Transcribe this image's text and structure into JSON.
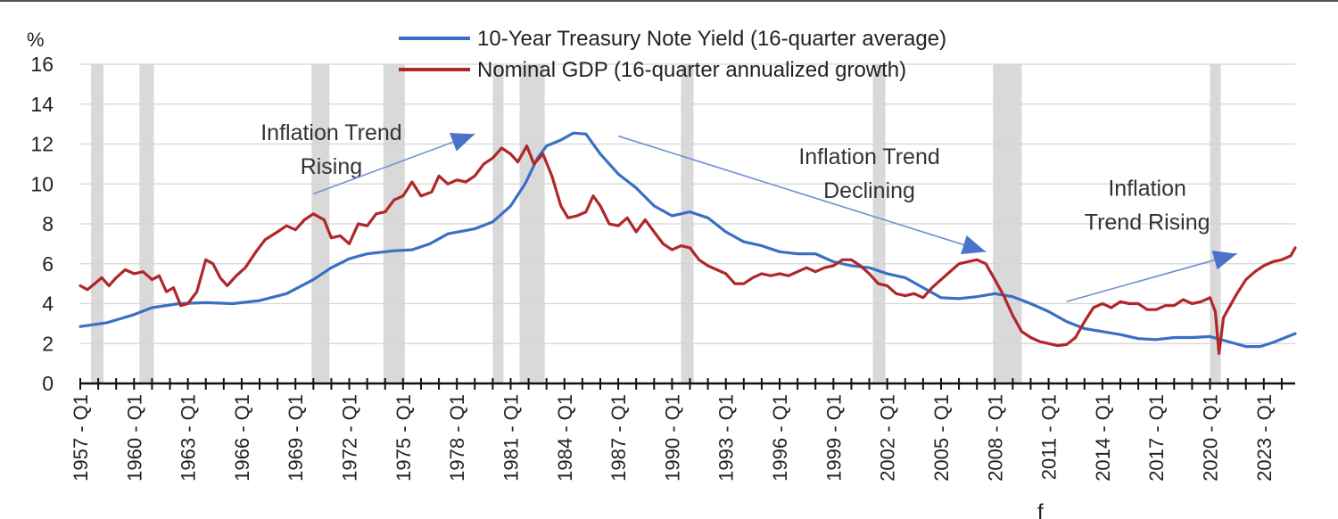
{
  "chart_data": {
    "type": "line",
    "unit_label": "%",
    "ylim": [
      0,
      16
    ],
    "y_ticks": [
      0,
      2,
      4,
      6,
      8,
      10,
      12,
      14,
      16
    ],
    "x_range": [
      1957.0,
      2024.75
    ],
    "x_tick_labels": [
      "1957 - Q1",
      "1960 - Q1",
      "1963 - Q1",
      "1966 - Q1",
      "1969 - Q1",
      "1972 - Q1",
      "1975 - Q1",
      "1978 - Q1",
      "1981 - Q1",
      "1984 - Q1",
      "1987 - Q1",
      "1990 - Q1",
      "1993 - Q1",
      "1996 - Q1",
      "1999 - Q1",
      "2002 - Q1",
      "2005 - Q1",
      "2008 - Q1",
      "2011 - Q1",
      "2014 - Q1",
      "2017 - Q1",
      "2020 - Q1",
      "2023 - Q1"
    ],
    "x_tick_years": [
      1957,
      1960,
      1963,
      1966,
      1969,
      1972,
      1975,
      1978,
      1981,
      1984,
      1987,
      1990,
      1993,
      1996,
      1999,
      2002,
      2005,
      2008,
      2011,
      2014,
      2017,
      2020,
      2023
    ],
    "grid": "horizontal",
    "legend_position": "top-center",
    "recessions": [
      [
        1957.6,
        1958.3
      ],
      [
        1960.3,
        1961.1
      ],
      [
        1969.9,
        1970.9
      ],
      [
        1973.9,
        1975.1
      ],
      [
        1980.0,
        1980.6
      ],
      [
        1981.5,
        1982.9
      ],
      [
        1990.5,
        1991.2
      ],
      [
        2001.2,
        2001.9
      ],
      [
        2007.9,
        2009.5
      ],
      [
        2020.0,
        2020.6
      ]
    ],
    "series": [
      {
        "name": "10-Year Treasury Note Yield (16-quarter average)",
        "color": "#3a6fc4",
        "points": [
          [
            1957.0,
            2.85
          ],
          [
            1958.5,
            3.05
          ],
          [
            1960.0,
            3.45
          ],
          [
            1961.0,
            3.8
          ],
          [
            1962.5,
            4.0
          ],
          [
            1964.0,
            4.05
          ],
          [
            1965.5,
            4.0
          ],
          [
            1967.0,
            4.15
          ],
          [
            1968.5,
            4.5
          ],
          [
            1970.0,
            5.2
          ],
          [
            1971.0,
            5.8
          ],
          [
            1972.0,
            6.25
          ],
          [
            1973.0,
            6.5
          ],
          [
            1974.5,
            6.65
          ],
          [
            1975.5,
            6.7
          ],
          [
            1976.5,
            7.0
          ],
          [
            1977.5,
            7.5
          ],
          [
            1979.0,
            7.75
          ],
          [
            1980.0,
            8.1
          ],
          [
            1981.0,
            8.9
          ],
          [
            1981.8,
            10.0
          ],
          [
            1982.5,
            11.3
          ],
          [
            1983.0,
            11.9
          ],
          [
            1983.8,
            12.2
          ],
          [
            1984.5,
            12.55
          ],
          [
            1985.2,
            12.5
          ],
          [
            1986.0,
            11.5
          ],
          [
            1987.0,
            10.5
          ],
          [
            1988.0,
            9.8
          ],
          [
            1989.0,
            8.9
          ],
          [
            1990.0,
            8.4
          ],
          [
            1991.0,
            8.6
          ],
          [
            1992.0,
            8.3
          ],
          [
            1993.0,
            7.6
          ],
          [
            1994.0,
            7.1
          ],
          [
            1995.0,
            6.9
          ],
          [
            1996.0,
            6.6
          ],
          [
            1997.0,
            6.5
          ],
          [
            1998.0,
            6.5
          ],
          [
            1999.0,
            6.1
          ],
          [
            2000.0,
            5.9
          ],
          [
            2001.0,
            5.8
          ],
          [
            2002.0,
            5.5
          ],
          [
            2003.0,
            5.3
          ],
          [
            2004.0,
            4.8
          ],
          [
            2005.0,
            4.3
          ],
          [
            2006.0,
            4.25
          ],
          [
            2007.0,
            4.35
          ],
          [
            2008.0,
            4.5
          ],
          [
            2009.0,
            4.35
          ],
          [
            2010.0,
            4.0
          ],
          [
            2011.0,
            3.6
          ],
          [
            2012.0,
            3.1
          ],
          [
            2013.0,
            2.75
          ],
          [
            2014.0,
            2.6
          ],
          [
            2015.0,
            2.45
          ],
          [
            2016.0,
            2.25
          ],
          [
            2017.0,
            2.2
          ],
          [
            2018.0,
            2.3
          ],
          [
            2019.0,
            2.3
          ],
          [
            2020.0,
            2.35
          ],
          [
            2021.0,
            2.1
          ],
          [
            2022.0,
            1.85
          ],
          [
            2022.8,
            1.85
          ],
          [
            2023.5,
            2.05
          ],
          [
            2024.75,
            2.5
          ]
        ]
      },
      {
        "name": "Nominal GDP (16-quarter annualized growth)",
        "color": "#b0262a",
        "points": [
          [
            1957.0,
            4.9
          ],
          [
            1957.4,
            4.7
          ],
          [
            1957.8,
            5.0
          ],
          [
            1958.2,
            5.3
          ],
          [
            1958.6,
            4.9
          ],
          [
            1959.0,
            5.3
          ],
          [
            1959.5,
            5.7
          ],
          [
            1960.0,
            5.5
          ],
          [
            1960.5,
            5.6
          ],
          [
            1961.0,
            5.2
          ],
          [
            1961.4,
            5.4
          ],
          [
            1961.8,
            4.6
          ],
          [
            1962.2,
            4.8
          ],
          [
            1962.6,
            3.9
          ],
          [
            1963.0,
            4.0
          ],
          [
            1963.5,
            4.6
          ],
          [
            1964.0,
            6.2
          ],
          [
            1964.4,
            6.0
          ],
          [
            1964.8,
            5.3
          ],
          [
            1965.2,
            4.9
          ],
          [
            1965.7,
            5.4
          ],
          [
            1966.2,
            5.8
          ],
          [
            1966.8,
            6.6
          ],
          [
            1967.3,
            7.2
          ],
          [
            1968.0,
            7.6
          ],
          [
            1968.5,
            7.9
          ],
          [
            1969.0,
            7.7
          ],
          [
            1969.5,
            8.2
          ],
          [
            1970.0,
            8.5
          ],
          [
            1970.6,
            8.2
          ],
          [
            1971.0,
            7.3
          ],
          [
            1971.5,
            7.4
          ],
          [
            1972.0,
            7.0
          ],
          [
            1972.5,
            8.0
          ],
          [
            1973.0,
            7.9
          ],
          [
            1973.5,
            8.5
          ],
          [
            1974.0,
            8.6
          ],
          [
            1974.5,
            9.2
          ],
          [
            1975.0,
            9.4
          ],
          [
            1975.5,
            10.1
          ],
          [
            1976.0,
            9.4
          ],
          [
            1976.6,
            9.6
          ],
          [
            1977.0,
            10.4
          ],
          [
            1977.5,
            10.0
          ],
          [
            1978.0,
            10.2
          ],
          [
            1978.5,
            10.1
          ],
          [
            1979.0,
            10.4
          ],
          [
            1979.5,
            11.0
          ],
          [
            1980.0,
            11.3
          ],
          [
            1980.5,
            11.8
          ],
          [
            1981.0,
            11.5
          ],
          [
            1981.4,
            11.1
          ],
          [
            1981.9,
            11.9
          ],
          [
            1982.3,
            11.0
          ],
          [
            1982.8,
            11.5
          ],
          [
            1983.3,
            10.4
          ],
          [
            1983.8,
            8.9
          ],
          [
            1984.2,
            8.3
          ],
          [
            1984.7,
            8.4
          ],
          [
            1985.2,
            8.6
          ],
          [
            1985.6,
            9.4
          ],
          [
            1986.0,
            8.9
          ],
          [
            1986.5,
            8.0
          ],
          [
            1987.0,
            7.9
          ],
          [
            1987.5,
            8.3
          ],
          [
            1988.0,
            7.6
          ],
          [
            1988.5,
            8.2
          ],
          [
            1989.0,
            7.6
          ],
          [
            1989.5,
            7.0
          ],
          [
            1990.0,
            6.7
          ],
          [
            1990.5,
            6.9
          ],
          [
            1991.0,
            6.8
          ],
          [
            1991.5,
            6.2
          ],
          [
            1992.0,
            5.9
          ],
          [
            1992.5,
            5.7
          ],
          [
            1993.0,
            5.5
          ],
          [
            1993.5,
            5.0
          ],
          [
            1994.0,
            5.0
          ],
          [
            1994.5,
            5.3
          ],
          [
            1995.0,
            5.5
          ],
          [
            1995.5,
            5.4
          ],
          [
            1996.0,
            5.5
          ],
          [
            1996.5,
            5.4
          ],
          [
            1997.0,
            5.6
          ],
          [
            1997.5,
            5.8
          ],
          [
            1998.0,
            5.6
          ],
          [
            1998.5,
            5.8
          ],
          [
            1999.0,
            5.9
          ],
          [
            1999.5,
            6.2
          ],
          [
            2000.0,
            6.2
          ],
          [
            2000.5,
            5.9
          ],
          [
            2001.0,
            5.5
          ],
          [
            2001.5,
            5.0
          ],
          [
            2002.0,
            4.9
          ],
          [
            2002.5,
            4.5
          ],
          [
            2003.0,
            4.4
          ],
          [
            2003.5,
            4.5
          ],
          [
            2004.0,
            4.3
          ],
          [
            2004.5,
            4.8
          ],
          [
            2005.0,
            5.2
          ],
          [
            2005.5,
            5.6
          ],
          [
            2006.0,
            6.0
          ],
          [
            2006.5,
            6.1
          ],
          [
            2007.0,
            6.2
          ],
          [
            2007.5,
            6.0
          ],
          [
            2008.0,
            5.2
          ],
          [
            2008.5,
            4.4
          ],
          [
            2009.0,
            3.4
          ],
          [
            2009.5,
            2.6
          ],
          [
            2010.0,
            2.3
          ],
          [
            2010.5,
            2.1
          ],
          [
            2011.0,
            2.0
          ],
          [
            2011.5,
            1.9
          ],
          [
            2012.0,
            1.95
          ],
          [
            2012.5,
            2.3
          ],
          [
            2013.0,
            3.1
          ],
          [
            2013.5,
            3.8
          ],
          [
            2014.0,
            4.0
          ],
          [
            2014.5,
            3.8
          ],
          [
            2015.0,
            4.1
          ],
          [
            2015.5,
            4.0
          ],
          [
            2016.0,
            4.0
          ],
          [
            2016.5,
            3.7
          ],
          [
            2017.0,
            3.7
          ],
          [
            2017.5,
            3.9
          ],
          [
            2018.0,
            3.9
          ],
          [
            2018.5,
            4.2
          ],
          [
            2019.0,
            4.0
          ],
          [
            2019.5,
            4.1
          ],
          [
            2020.0,
            4.3
          ],
          [
            2020.3,
            3.6
          ],
          [
            2020.5,
            1.5
          ],
          [
            2020.75,
            3.3
          ],
          [
            2021.0,
            3.7
          ],
          [
            2021.5,
            4.5
          ],
          [
            2022.0,
            5.2
          ],
          [
            2022.5,
            5.6
          ],
          [
            2023.0,
            5.9
          ],
          [
            2023.5,
            6.1
          ],
          [
            2024.0,
            6.2
          ],
          [
            2024.5,
            6.4
          ],
          [
            2024.75,
            6.8
          ]
        ]
      }
    ],
    "annotations": [
      {
        "lines": [
          "Inflation Trend",
          "Rising"
        ],
        "x": 1971.0,
        "y": 12.2,
        "arrow": [
          [
            1970.0,
            9.5
          ],
          [
            1979.0,
            12.5
          ]
        ]
      },
      {
        "lines": [
          "Inflation Trend",
          "Declining"
        ],
        "x": 2001.0,
        "y": 11.0,
        "arrow": [
          [
            1987.0,
            12.4
          ],
          [
            2007.5,
            6.6
          ]
        ]
      },
      {
        "lines": [
          "Inflation",
          "Trend Rising"
        ],
        "x": 2016.5,
        "y": 9.4,
        "arrow": [
          [
            2012.0,
            4.1
          ],
          [
            2021.5,
            6.5
          ]
        ]
      }
    ],
    "stray_mark": "f"
  }
}
